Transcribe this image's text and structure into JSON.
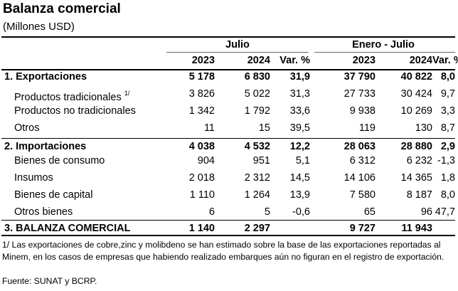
{
  "title": "Balanza comercial",
  "subtitle": "(Millones USD)",
  "groups": {
    "julio": "Julio",
    "enero_julio": "Enero - Julio"
  },
  "columns": [
    "2023",
    "2024",
    "Var. %",
    "2023",
    "2024",
    "Var. %"
  ],
  "rows": [
    {
      "label": "1. Exportaciones",
      "bold": true,
      "values": [
        "5 178",
        "6 830",
        "31,9",
        "37 790",
        "40 822",
        "8,0"
      ]
    },
    {
      "label": "Productos tradicionales",
      "note": "1/",
      "values": [
        "3 826",
        "5 022",
        "31,3",
        "27 733",
        "30 424",
        "9,7"
      ]
    },
    {
      "label": "Productos no tradicionales",
      "values": [
        "1 342",
        "1 792",
        "33,6",
        "9 938",
        "10 269",
        "3,3"
      ]
    },
    {
      "label": "Otros",
      "values": [
        "11",
        "15",
        "39,5",
        "119",
        "130",
        "8,7"
      ]
    },
    {
      "label": "2. Importaciones",
      "bold": true,
      "values": [
        "4 038",
        "4 532",
        "12,2",
        "28 063",
        "28 880",
        "2,9"
      ]
    },
    {
      "label": "Bienes de consumo",
      "values": [
        "904",
        "951",
        "5,1",
        "6 312",
        "6 232",
        "-1,3"
      ]
    },
    {
      "label": "Insumos",
      "values": [
        "2 018",
        "2 312",
        "14,5",
        "14 106",
        "14 365",
        "1,8"
      ]
    },
    {
      "label": "Bienes de capital",
      "values": [
        "1 110",
        "1 264",
        "13,9",
        "7 580",
        "8 187",
        "8,0"
      ]
    },
    {
      "label": "Otros bienes",
      "values": [
        "6",
        "5",
        "-0,6",
        "65",
        "96",
        "47,7"
      ]
    },
    {
      "label": "3. BALANZA  COMERCIAL",
      "bold": true,
      "values": [
        "1 140",
        "2 297",
        "",
        "9 727",
        "11 943",
        ""
      ]
    }
  ],
  "footnote": "1/ Las exportaciones de cobre,zinc y molibdeno se han estimado sobre la base de las exportaciones reportadas al Minem, en los casos de empresas que habiendo realizado embarques aún no figuran en el registro de exportación.",
  "source": "Fuente: SUNAT y BCRP."
}
